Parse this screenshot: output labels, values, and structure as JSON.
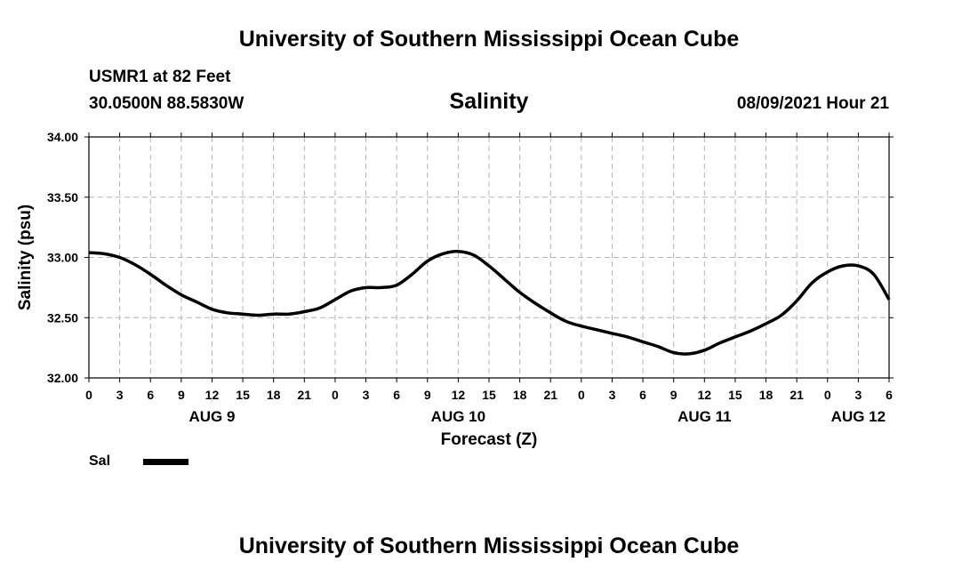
{
  "header": {
    "title": "University of Southern Mississippi Ocean Cube",
    "station": "USMR1 at 82 Feet",
    "coords": "30.0500N  88.5830W",
    "timestamp": "08/09/2021 Hour 21"
  },
  "footer": {
    "title": "University of Southern Mississippi Ocean Cube"
  },
  "legend": {
    "label": "Sal",
    "color": "#000000"
  },
  "chart_data": {
    "type": "line",
    "title": "Salinity",
    "xlabel": "Forecast (Z)",
    "ylabel": "Salinity (psu)",
    "ylim": [
      32.0,
      34.0
    ],
    "xlim": [
      0,
      78
    ],
    "y_ticks": [
      "32.00",
      "32.50",
      "33.00",
      "33.50",
      "34.00"
    ],
    "y_tick_values": [
      32.0,
      32.5,
      33.0,
      33.5,
      34.0
    ],
    "x_tick_hours": [
      0,
      3,
      6,
      9,
      12,
      15,
      18,
      21,
      24,
      27,
      30,
      33,
      36,
      39,
      42,
      45,
      48,
      51,
      54,
      57,
      60,
      63,
      66,
      69,
      72,
      75,
      78
    ],
    "x_tick_labels": [
      "0",
      "3",
      "6",
      "9",
      "12",
      "15",
      "18",
      "21",
      "0",
      "3",
      "6",
      "9",
      "12",
      "15",
      "18",
      "21",
      "0",
      "3",
      "6",
      "9",
      "12",
      "15",
      "18",
      "21",
      "0",
      "3",
      "6"
    ],
    "date_labels": [
      {
        "text": "AUG 9",
        "hour": 12
      },
      {
        "text": "AUG 10",
        "hour": 36
      },
      {
        "text": "AUG 11",
        "hour": 60
      },
      {
        "text": "AUG 12",
        "hour": 75
      }
    ],
    "grid": true,
    "series": [
      {
        "name": "Sal",
        "color": "#000000",
        "x": [
          0,
          1.5,
          3,
          4.5,
          6,
          7.5,
          9,
          10.5,
          12,
          13.5,
          15,
          16.5,
          18,
          19.5,
          21,
          22.5,
          24,
          25.5,
          27,
          28.5,
          30,
          31.5,
          33,
          34.5,
          36,
          37.5,
          39,
          40.5,
          42,
          43.5,
          45,
          46.5,
          48,
          49.5,
          51,
          52.5,
          54,
          55.5,
          57,
          58.5,
          60,
          61.5,
          63,
          64.5,
          66,
          67.5,
          69,
          70.5,
          72,
          73.5,
          75,
          76.5,
          78
        ],
        "values": [
          33.04,
          33.03,
          33.0,
          32.94,
          32.86,
          32.77,
          32.69,
          32.63,
          32.57,
          32.54,
          32.53,
          32.52,
          32.53,
          32.53,
          32.55,
          32.58,
          32.65,
          32.72,
          32.75,
          32.75,
          32.77,
          32.86,
          32.97,
          33.03,
          33.05,
          33.02,
          32.93,
          32.82,
          32.71,
          32.62,
          32.54,
          32.47,
          32.43,
          32.4,
          32.37,
          32.34,
          32.3,
          32.26,
          32.21,
          32.2,
          32.23,
          32.29,
          32.34,
          32.39,
          32.45,
          32.52,
          32.64,
          32.79,
          32.88,
          32.93,
          32.93,
          32.86,
          32.65
        ]
      }
    ]
  }
}
